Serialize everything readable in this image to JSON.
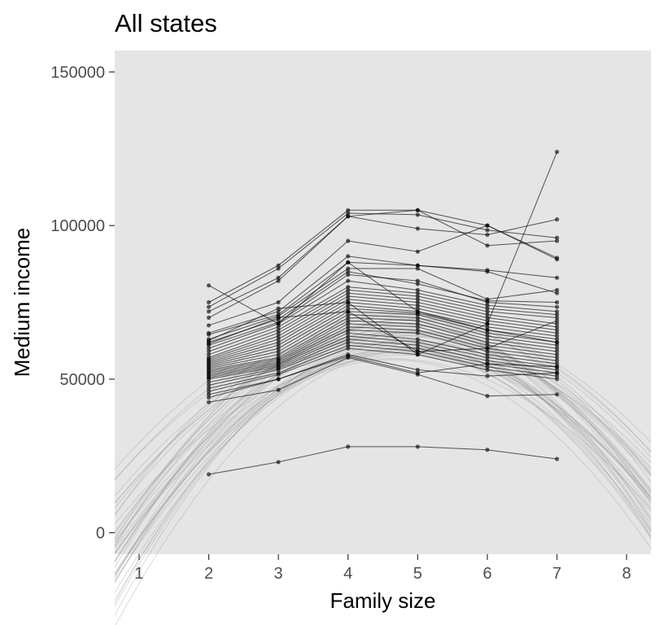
{
  "chart_data": {
    "type": "line",
    "title": "All states",
    "xlabel": "Family size",
    "ylabel": "Medium income",
    "x_ticks": [
      1,
      2,
      3,
      4,
      5,
      6,
      7,
      8
    ],
    "y_ticks": [
      0,
      50000,
      100000,
      150000
    ],
    "xlim": [
      0.65,
      8.35
    ],
    "ylim": [
      -7000,
      157000
    ],
    "grid": false,
    "background": "#e5e5e5",
    "point_color": "#000000",
    "fit_color": "#999999",
    "x": [
      2,
      3,
      4,
      5,
      6,
      7
    ],
    "series": [
      {
        "values": [
          80500,
          68000,
          88000,
          72000,
          66000,
          62000
        ]
      },
      {
        "values": [
          75000,
          87000,
          105000,
          105000,
          100000,
          89000
        ]
      },
      {
        "values": [
          73500,
          86000,
          104000,
          103500,
          98500,
          96000
        ]
      },
      {
        "values": [
          72000,
          83000,
          103000,
          105000,
          93500,
          95000
        ]
      },
      {
        "values": [
          70000,
          82000,
          103000,
          99000,
          97000,
          102000
        ]
      },
      {
        "values": [
          67500,
          75000,
          95000,
          91500,
          100000,
          89500
        ]
      },
      {
        "values": [
          65000,
          72000,
          90000,
          87000,
          85500,
          83000
        ]
      },
      {
        "values": [
          64500,
          71000,
          88000,
          87000,
          85000,
          78000
        ]
      },
      {
        "values": [
          63000,
          70500,
          86000,
          86000,
          76000,
          79000
        ]
      },
      {
        "values": [
          62000,
          69500,
          85000,
          81000,
          75500,
          75000
        ]
      },
      {
        "values": [
          61000,
          68500,
          84000,
          82000,
          75000,
          73500
        ]
      },
      {
        "values": [
          60000,
          68000,
          82000,
          79000,
          74000,
          72000
        ]
      },
      {
        "values": [
          59000,
          67000,
          80000,
          78000,
          73000,
          71000
        ]
      },
      {
        "values": [
          58000,
          66000,
          79000,
          77000,
          72000,
          70000
        ]
      },
      {
        "values": [
          57000,
          65000,
          78000,
          76000,
          71000,
          68000
        ]
      },
      {
        "values": [
          56500,
          64000,
          77000,
          75000,
          70000,
          67000
        ]
      },
      {
        "values": [
          56000,
          63000,
          76000,
          74000,
          69000,
          66000
        ]
      },
      {
        "values": [
          55500,
          62000,
          75000,
          73000,
          68000,
          65000
        ]
      },
      {
        "values": [
          55000,
          61000,
          74000,
          72000,
          67000,
          64000
        ]
      },
      {
        "values": [
          54500,
          60000,
          73000,
          71500,
          66000,
          63000
        ]
      },
      {
        "values": [
          54000,
          59000,
          72000,
          71000,
          65000,
          62000
        ]
      },
      {
        "values": [
          53500,
          58000,
          71000,
          70000,
          64000,
          61000
        ]
      },
      {
        "values": [
          53000,
          57000,
          70000,
          69000,
          63000,
          60000
        ]
      },
      {
        "values": [
          52500,
          56500,
          69000,
          68000,
          62000,
          59000
        ]
      },
      {
        "values": [
          52000,
          56000,
          68000,
          67000,
          61000,
          58000
        ]
      },
      {
        "values": [
          51500,
          55500,
          67000,
          66000,
          60000,
          57000
        ]
      },
      {
        "values": [
          51000,
          55000,
          66000,
          65000,
          59000,
          56000
        ]
      },
      {
        "values": [
          50500,
          54500,
          65000,
          63000,
          58000,
          55000
        ]
      },
      {
        "values": [
          50000,
          54000,
          64000,
          62000,
          57000,
          54000
        ]
      },
      {
        "values": [
          49000,
          53500,
          63000,
          61000,
          56000,
          53000
        ]
      },
      {
        "values": [
          48000,
          53000,
          62000,
          60000,
          55000,
          52000
        ]
      },
      {
        "values": [
          47000,
          52000,
          61000,
          59000,
          54000,
          51000
        ]
      },
      {
        "values": [
          46000,
          51500,
          60000,
          58000,
          53000,
          50000
        ]
      },
      {
        "values": [
          45000,
          50000,
          58000,
          53000,
          51000,
          52000
        ]
      },
      {
        "values": [
          44000,
          50000,
          57500,
          52000,
          55000,
          54000
        ]
      },
      {
        "values": [
          42500,
          46500,
          57000,
          51500,
          44500,
          45000
        ]
      },
      {
        "values": [
          62500,
          73000,
          75000,
          58000,
          68000,
          124000
        ]
      },
      {
        "values": [
          61500,
          70000,
          72000,
          59000,
          60000,
          69000
        ]
      },
      {
        "values": [
          19000,
          23000,
          28000,
          28000,
          27000,
          24000
        ]
      }
    ],
    "fit_curves": {
      "count": 40,
      "x_range": [
        0.65,
        8.35
      ]
    }
  }
}
